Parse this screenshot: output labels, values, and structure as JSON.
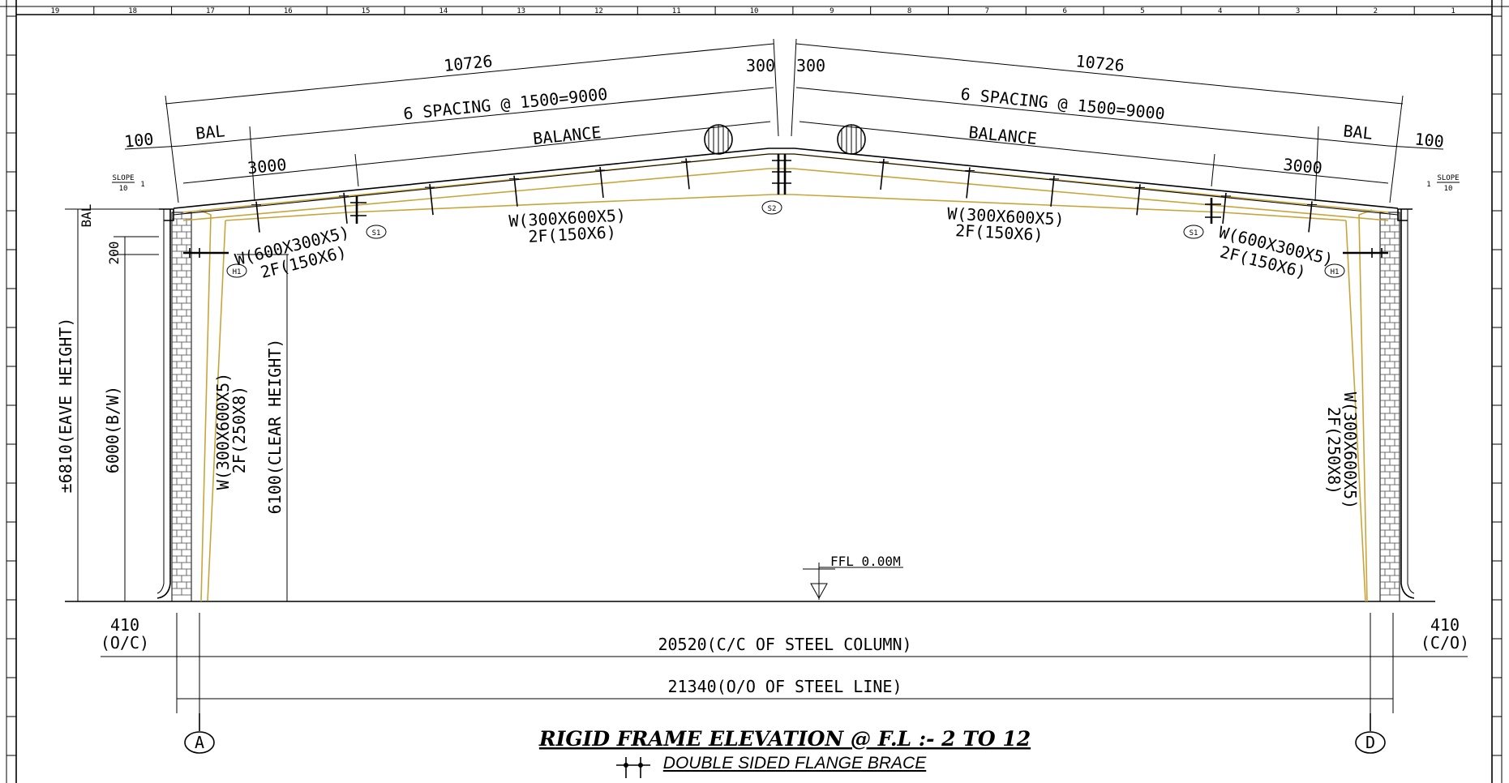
{
  "title": "RIGID FRAME ELEVATION @ F.L :-  2 TO 12",
  "legend": {
    "label": "DOUBLE SIDED FLANGE BRACE"
  },
  "dims": {
    "rafter_left": "10726",
    "rafter_right": "10726",
    "ridge_left": "300",
    "ridge_right": "300",
    "spacing_left": "6 SPACING @ 1500=9000",
    "spacing_right": "6 SPACING @ 1500=9000",
    "balance_left": "BALANCE",
    "balance_right": "BALANCE",
    "bal_left": "BAL",
    "bal_right": "BAL",
    "overhang_left": "100",
    "overhang_right": "100",
    "purlin_left": "3000",
    "purlin_right": "3000",
    "eave_bal": "BAL",
    "eave_200": "200",
    "slope": "SLOPE",
    "slope_run": "10",
    "slope_rise": "1",
    "eave_height": "±6810(EAVE HEIGHT)",
    "bw_height": "6000(B/W)",
    "clear_height": "6100(CLEAR HEIGHT)",
    "ffl": "FFL 0.00M",
    "left_offset": "410",
    "left_offset_note": "(O/C)",
    "right_offset": "410",
    "right_offset_note": "(C/O)",
    "cc_span": "20520(C/C OF STEEL COLUMN)",
    "oo_span": "21340(O/O OF STEEL LINE)"
  },
  "members": {
    "rafter_center_left_1": "W(300X600X5)",
    "rafter_center_left_2": "2F(150X6)",
    "rafter_center_right_1": "W(300X600X5)",
    "rafter_center_right_2": "2F(150X6)",
    "rafter_end_left_1": "W(600X300X5)",
    "rafter_end_left_2": "2F(150X6)",
    "rafter_end_right_1": "W(600X300X5)",
    "rafter_end_right_2": "2F(150X6)",
    "column_left_1": "W(300X600X5)",
    "column_left_2": "2F(250X8)",
    "column_right_1": "W(300X600X5)",
    "column_right_2": "2F(250X8)"
  },
  "tags": {
    "splice_1": "S1",
    "splice_2": "S2",
    "haunch": "H1"
  },
  "gridlines": {
    "left": "A",
    "right": "D"
  },
  "border_top_numbers": [
    "19",
    "18",
    "17",
    "16",
    "15",
    "14",
    "13",
    "12",
    "11",
    "10",
    "9",
    "8",
    "7",
    "6",
    "5",
    "4",
    "3",
    "2",
    "1"
  ],
  "colors": {
    "frame_outline": "#c8a53c",
    "line": "#000000"
  }
}
